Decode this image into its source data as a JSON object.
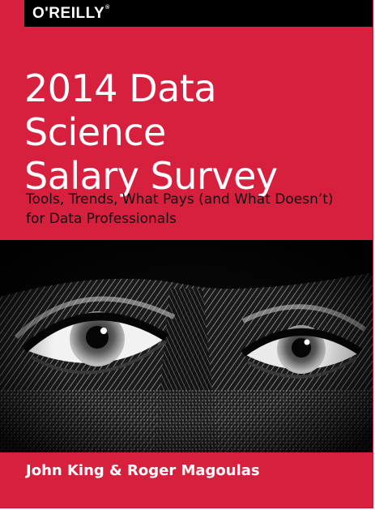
{
  "cover": {
    "publisher": "O'REILLY",
    "publisher_mark": "®",
    "title": "2014 Data Science\nSalary Survey",
    "subtitle": "Tools, Trends, What Pays (and What Doesn’t)\n for Data Professionals",
    "authors": "John King & Roger Magoulas",
    "colors": {
      "background": "#d6203d",
      "logo_bar": "#000000",
      "title": "#ffffff",
      "subtitle": "#111111"
    },
    "image": "engraved-banknote-eyes"
  }
}
